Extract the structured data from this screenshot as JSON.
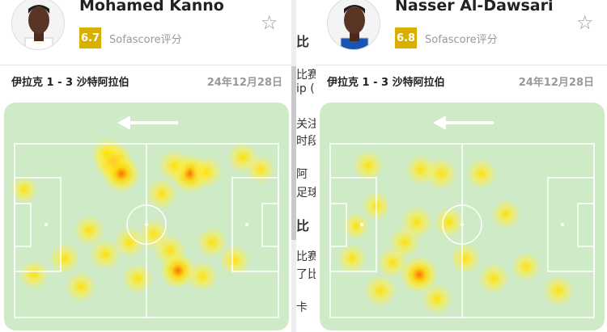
{
  "players": [
    {
      "name": "Mohamed Kanno",
      "rating": "6.7",
      "rating_label": "Sofascore评分",
      "rating_color": "#d9af00",
      "match": "伊拉克 1 - 3 沙特阿拉伯",
      "date": "24年12月28日",
      "jersey_color": "#ffffff",
      "attack_direction": "left"
    },
    {
      "name": "Nasser Al-Dawsari",
      "rating": "6.8",
      "rating_label": "Sofascore评分",
      "rating_color": "#d9af00",
      "match": "伊拉克 1 - 3 沙特阿拉伯",
      "date": "24年12月28日",
      "jersey_color": "#1a55b5",
      "attack_direction": "left"
    }
  ],
  "background_text": [
    "比赛",
    "ip (",
    "关注",
    "时段",
    "阿",
    "足球",
    "比赛",
    "了比",
    "卡"
  ],
  "background_headings": [
    "比",
    "比"
  ],
  "colors": {
    "pitch": "#cfeac6",
    "lines": "#ffffff"
  }
}
